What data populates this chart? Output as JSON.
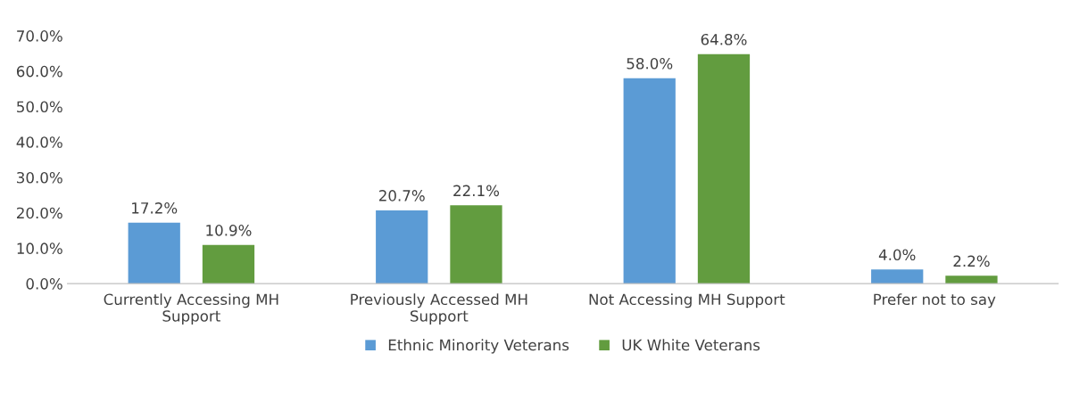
{
  "chart_data": {
    "type": "bar",
    "categories": [
      "Currently Accessing MH\nSupport",
      "Previously Accessed MH\nSupport",
      "Not Accessing MH Support",
      "Prefer not to say"
    ],
    "series": [
      {
        "name": "Ethnic Minority Veterans",
        "color": "#5b9bd5",
        "values": [
          17.2,
          20.7,
          58.0,
          4.0
        ],
        "value_labels": [
          "17.2%",
          "20.7%",
          "58.0%",
          "4.0%"
        ]
      },
      {
        "name": "UK White Veterans",
        "color": "#629c3f",
        "values": [
          10.9,
          22.1,
          64.8,
          2.2
        ],
        "value_labels": [
          "10.9%",
          "22.1%",
          "64.8%",
          "2.2%"
        ]
      }
    ],
    "ylim": [
      0,
      70
    ],
    "yticks": [
      {
        "value": 0,
        "label": "0.0%"
      },
      {
        "value": 10,
        "label": "10.0%"
      },
      {
        "value": 20,
        "label": "20.0%"
      },
      {
        "value": 30,
        "label": "30.0%"
      },
      {
        "value": 40,
        "label": "40.0%"
      },
      {
        "value": 50,
        "label": "50.0%"
      },
      {
        "value": 60,
        "label": "60.0%"
      },
      {
        "value": 70,
        "label": "70.0%"
      }
    ],
    "grid": false,
    "legend": "bottom"
  }
}
